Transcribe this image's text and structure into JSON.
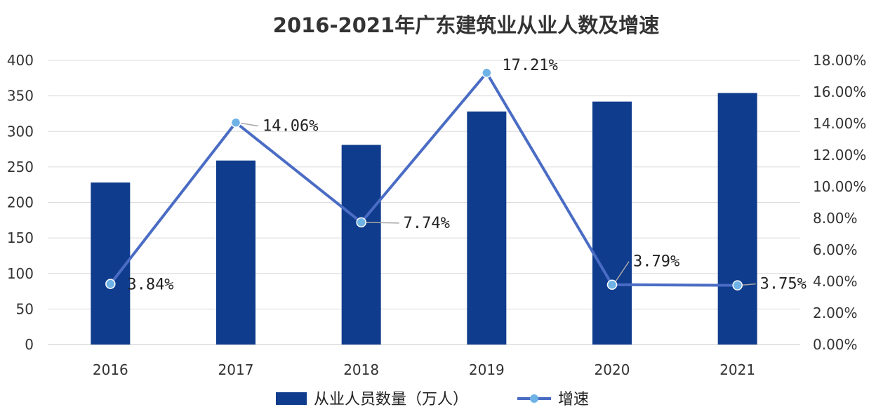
{
  "chart_data": {
    "type": "bar",
    "title": "2016-2021年广东建筑业从业人数及增速",
    "categories": [
      "2016",
      "2017",
      "2018",
      "2019",
      "2020",
      "2021"
    ],
    "series": [
      {
        "name": "从业人员数量（万人）",
        "type": "bar",
        "axis": "left",
        "color": "#0f3c8c",
        "values": [
          228,
          259,
          281,
          328,
          342,
          354
        ]
      },
      {
        "name": "增速",
        "type": "line",
        "axis": "right",
        "color": "#4a6cc4",
        "marker_color": "#6fb3e6",
        "values": [
          3.84,
          14.06,
          7.74,
          17.21,
          3.79,
          3.75
        ],
        "labels": [
          "3.84%",
          "14.06%",
          "7.74%",
          "17.21%",
          "3.79%",
          "3.75%"
        ]
      }
    ],
    "y_left": {
      "ylim": [
        0,
        400
      ],
      "ticks": [
        "0",
        "50",
        "100",
        "150",
        "200",
        "250",
        "300",
        "350",
        "400"
      ]
    },
    "y_right": {
      "ylim": [
        0,
        18
      ],
      "ticks": [
        "0.00%",
        "2.00%",
        "4.00%",
        "6.00%",
        "8.00%",
        "10.00%",
        "12.00%",
        "14.00%",
        "16.00%",
        "18.00%"
      ]
    },
    "grid": true,
    "legend": "bottom"
  }
}
